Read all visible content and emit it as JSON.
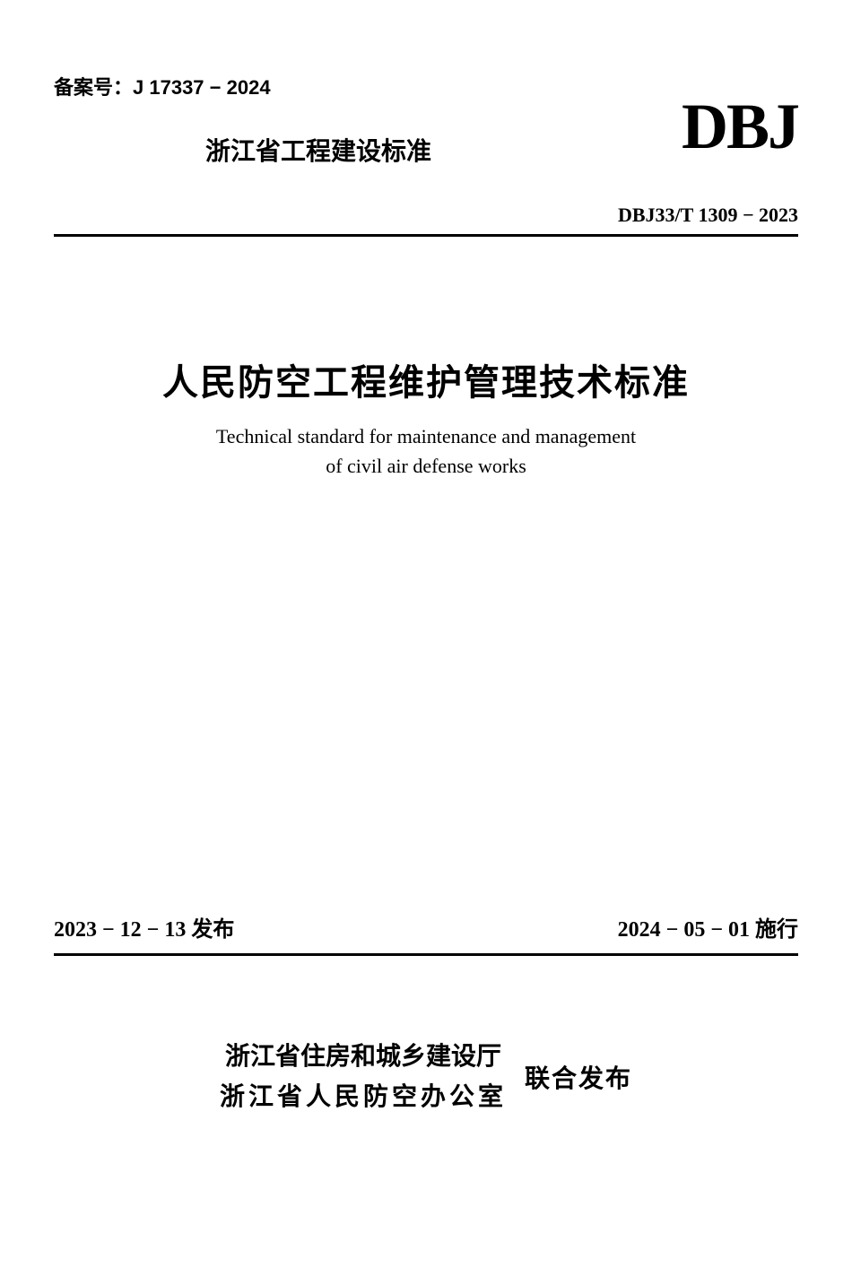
{
  "header": {
    "record_number_label": "备案号：",
    "record_number": "J 17337 − 2024",
    "province_standard": "浙江省工程建设标准",
    "dbj_logo": "DBJ",
    "standard_code": "DBJ33/T 1309 − 2023"
  },
  "title": {
    "chinese": "人民防空工程维护管理技术标准",
    "english_line1": "Technical standard for maintenance and management",
    "english_line2": "of civil air defense works"
  },
  "dates": {
    "publish_date": "2023 − 12 − 13",
    "publish_label": "发布",
    "implement_date": "2024 − 05 − 01",
    "implement_label": "施行"
  },
  "publisher": {
    "org1": "浙江省住房和城乡建设厅",
    "org2": "浙江省人民防空办公室",
    "joint_label": "联合发布"
  },
  "colors": {
    "background": "#ffffff",
    "text": "#000000",
    "divider": "#000000"
  }
}
